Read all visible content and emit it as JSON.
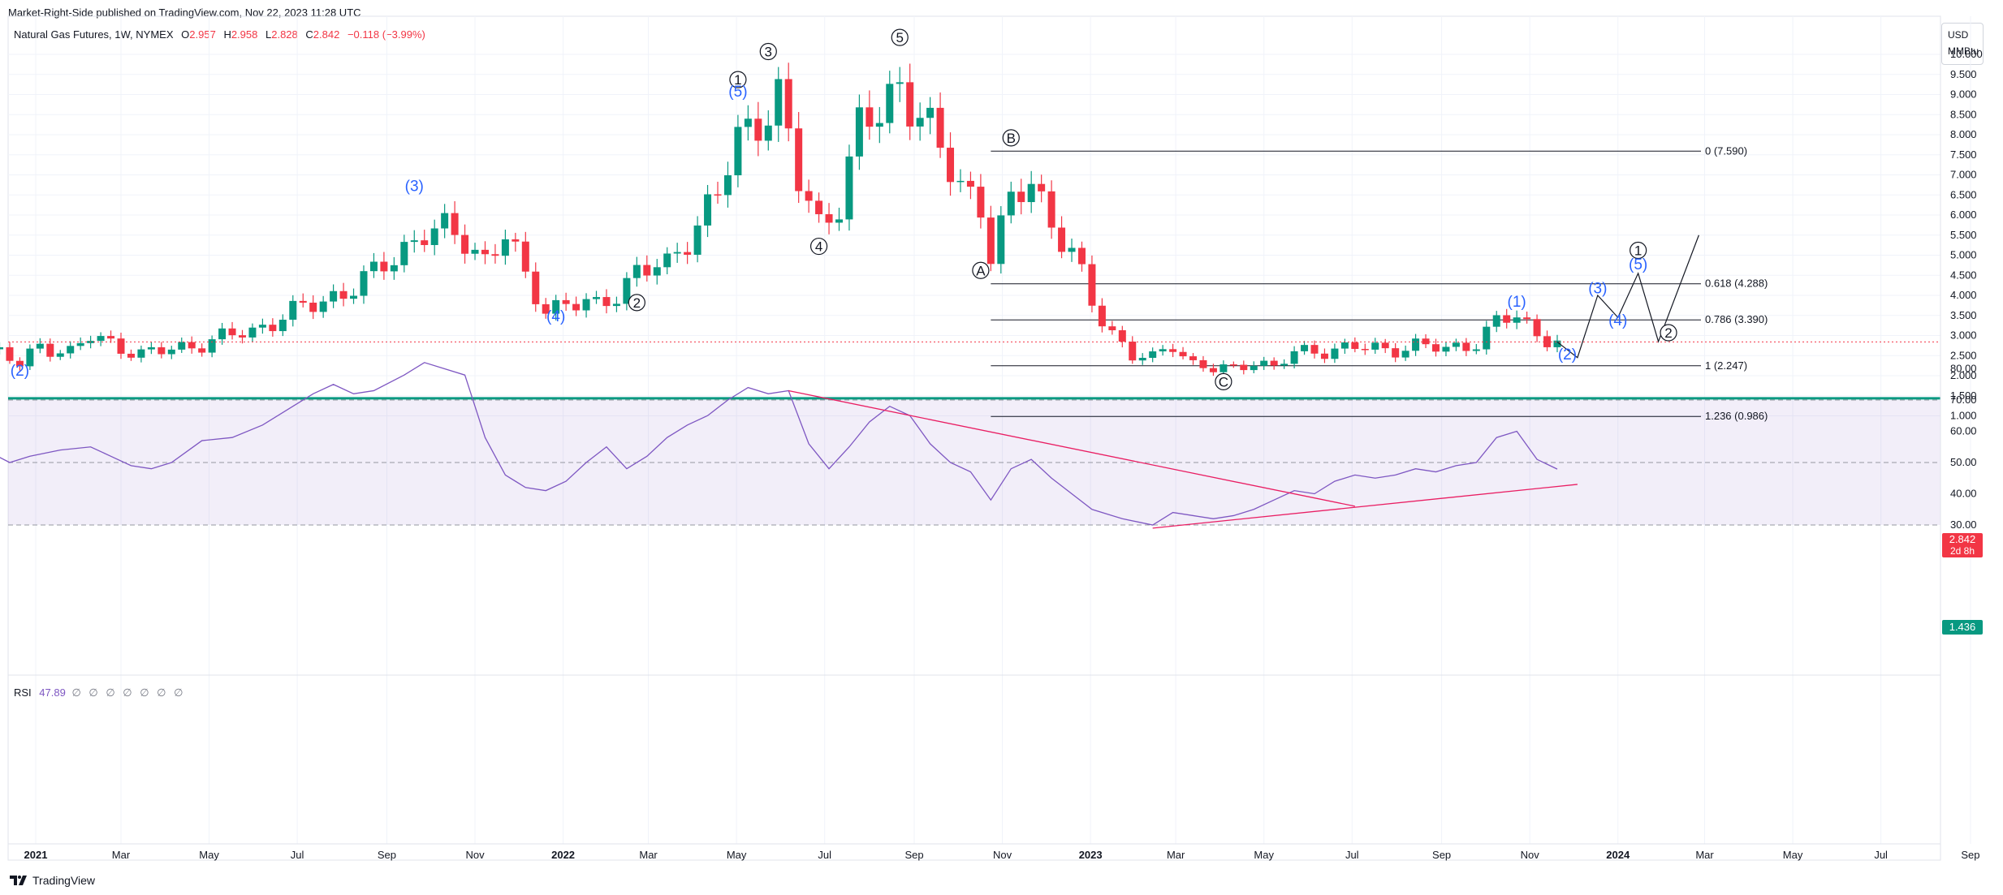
{
  "header": {
    "publisher": "Market-Right-Side published on TradingView.com, Nov 22, 2023 11:28 UTC"
  },
  "symbol": {
    "name": "Natural Gas Futures, 1W, NYMEX",
    "o_label": "O",
    "o": "2.957",
    "h_label": "H",
    "h": "2.958",
    "l_label": "L",
    "l": "2.828",
    "c_label": "C",
    "c": "2.842",
    "change": "−0.118 (−3.99%)"
  },
  "currency": {
    "line1": "USD",
    "line2": "MMBtu"
  },
  "price_tag": {
    "price": "2.842",
    "countdown": "2d 8h"
  },
  "level_tag": "1.436",
  "rsi": {
    "label": "RSI",
    "value": "47.89",
    "dots": "∅ ∅ ∅ ∅ ∅ ∅ ∅"
  },
  "footer": {
    "brand": "TradingView"
  },
  "colors": {
    "up": "#089981",
    "down": "#f23645",
    "rsi": "#7e57c2",
    "trend": "#e91e63",
    "wave": "#2962ff",
    "support": "#089981"
  },
  "chart_data": {
    "type": "candlestick",
    "title": "Natural Gas Futures, 1W, NYMEX",
    "y_ticks": [
      "1.000",
      "1.500",
      "2.000",
      "2.500",
      "3.000",
      "3.500",
      "4.000",
      "4.500",
      "5.000",
      "5.500",
      "6.000",
      "6.500",
      "7.000",
      "7.500",
      "8.000",
      "8.500",
      "9.000",
      "9.500",
      "10.000"
    ],
    "x_ticks": [
      {
        "label": "2021",
        "date": "2021-01-01",
        "bold": true
      },
      {
        "label": "Mar",
        "date": "2021-03-01",
        "bold": false
      },
      {
        "label": "May",
        "date": "2021-05-01",
        "bold": false
      },
      {
        "label": "Jul",
        "date": "2021-07-01",
        "bold": false
      },
      {
        "label": "Sep",
        "date": "2021-09-01",
        "bold": false
      },
      {
        "label": "Nov",
        "date": "2021-11-01",
        "bold": false
      },
      {
        "label": "2022",
        "date": "2022-01-01",
        "bold": true
      },
      {
        "label": "Mar",
        "date": "2022-03-01",
        "bold": false
      },
      {
        "label": "May",
        "date": "2022-05-01",
        "bold": false
      },
      {
        "label": "Jul",
        "date": "2022-07-01",
        "bold": false
      },
      {
        "label": "Sep",
        "date": "2022-09-01",
        "bold": false
      },
      {
        "label": "Nov",
        "date": "2022-11-01",
        "bold": false
      },
      {
        "label": "2023",
        "date": "2023-01-01",
        "bold": true
      },
      {
        "label": "Mar",
        "date": "2023-03-01",
        "bold": false
      },
      {
        "label": "May",
        "date": "2023-05-01",
        "bold": false
      },
      {
        "label": "Jul",
        "date": "2023-07-01",
        "bold": false
      },
      {
        "label": "Sep",
        "date": "2023-09-01",
        "bold": false
      },
      {
        "label": "Nov",
        "date": "2023-11-01",
        "bold": false
      },
      {
        "label": "2024",
        "date": "2024-01-01",
        "bold": true
      },
      {
        "label": "Mar",
        "date": "2024-03-01",
        "bold": false
      },
      {
        "label": "May",
        "date": "2024-05-01",
        "bold": false
      },
      {
        "label": "Jul",
        "date": "2024-07-01",
        "bold": false
      },
      {
        "label": "Sep",
        "date": "2024-09-01",
        "bold": false
      }
    ],
    "rsi_ticks": [
      "30.00",
      "40.00",
      "50.00",
      "60.00",
      "70.00",
      "80.00"
    ],
    "rsi_band": [
      30,
      70
    ],
    "rsi_midline": 50,
    "close_path": [
      [
        "2020-11-02",
        2.9
      ],
      [
        "2020-11-16",
        2.75
      ],
      [
        "2020-12-07",
        2.6
      ],
      [
        "2020-12-21",
        2.25
      ],
      [
        "2021-01-04",
        2.75
      ],
      [
        "2021-01-25",
        2.6
      ],
      [
        "2021-02-08",
        2.95
      ],
      [
        "2021-02-22",
        2.8
      ],
      [
        "2021-03-15",
        2.55
      ],
      [
        "2021-03-29",
        2.6
      ],
      [
        "2021-04-19",
        2.75
      ],
      [
        "2021-05-10",
        2.95
      ],
      [
        "2021-05-31",
        3.1
      ],
      [
        "2021-06-21",
        3.5
      ],
      [
        "2021-07-12",
        3.75
      ],
      [
        "2021-08-02",
        4.1
      ],
      [
        "2021-08-23",
        4.5
      ],
      [
        "2021-09-13",
        5.2
      ],
      [
        "2021-09-27",
        5.6
      ],
      [
        "2021-10-11",
        5.55
      ],
      [
        "2021-10-25",
        5.4
      ],
      [
        "2021-11-08",
        4.9
      ],
      [
        "2021-11-22",
        5.5
      ],
      [
        "2021-12-06",
        4.4
      ],
      [
        "2021-12-20",
        3.7
      ],
      [
        "2022-01-03",
        3.8
      ],
      [
        "2022-01-24",
        3.7
      ],
      [
        "2022-02-07",
        4.1
      ],
      [
        "2022-02-21",
        4.6
      ],
      [
        "2022-03-14",
        4.7
      ],
      [
        "2022-03-28",
        5.5
      ],
      [
        "2022-04-18",
        6.5
      ],
      [
        "2022-05-02",
        7.8
      ],
      [
        "2022-05-16",
        8.5
      ],
      [
        "2022-05-30",
        8.9
      ],
      [
        "2022-06-13",
        6.8
      ],
      [
        "2022-06-27",
        5.75
      ],
      [
        "2022-07-11",
        6.4
      ],
      [
        "2022-07-25",
        8.1
      ],
      [
        "2022-08-08",
        8.5
      ],
      [
        "2022-08-22",
        9.35
      ],
      [
        "2022-09-05",
        8.5
      ],
      [
        "2022-09-19",
        7.5
      ],
      [
        "2022-10-03",
        6.8
      ],
      [
        "2022-10-17",
        6.3
      ],
      [
        "2022-10-24",
        5.0
      ],
      [
        "2022-11-07",
        6.2
      ],
      [
        "2022-11-21",
        7.0
      ],
      [
        "2022-12-05",
        5.8
      ],
      [
        "2022-12-19",
        5.0
      ],
      [
        "2023-01-02",
        3.8
      ],
      [
        "2023-01-16",
        3.1
      ],
      [
        "2023-01-30",
        2.5
      ],
      [
        "2023-02-13",
        2.4
      ],
      [
        "2023-02-27",
        2.8
      ],
      [
        "2023-03-13",
        2.3
      ],
      [
        "2023-03-27",
        2.15
      ],
      [
        "2023-04-10",
        2.15
      ],
      [
        "2023-04-24",
        2.4
      ],
      [
        "2023-05-08",
        2.2
      ],
      [
        "2023-05-22",
        2.55
      ],
      [
        "2023-06-12",
        2.65
      ],
      [
        "2023-07-03",
        2.7
      ],
      [
        "2023-07-24",
        2.65
      ],
      [
        "2023-08-14",
        2.75
      ],
      [
        "2023-09-04",
        2.65
      ],
      [
        "2023-09-25",
        2.85
      ],
      [
        "2023-10-09",
        3.3
      ],
      [
        "2023-10-23",
        3.5
      ],
      [
        "2023-11-06",
        3.05
      ],
      [
        "2023-11-20",
        2.84
      ]
    ],
    "projection": [
      [
        "2023-11-20",
        2.84
      ],
      [
        "2023-12-04",
        2.45
      ],
      [
        "2023-12-18",
        4.0
      ],
      [
        "2024-01-01",
        3.45
      ],
      [
        "2024-01-15",
        4.55
      ],
      [
        "2024-01-29",
        2.85
      ],
      [
        "2024-02-26",
        5.5
      ]
    ],
    "fib_levels": [
      {
        "label": "0 (7.590)",
        "price": 7.59
      },
      {
        "label": "0.618 (4.288)",
        "price": 4.288
      },
      {
        "label": "0.786 (3.390)",
        "price": 3.39
      },
      {
        "label": "1 (2.247)",
        "price": 2.247
      },
      {
        "label": "1.236 (0.986)",
        "price": 0.986
      }
    ],
    "fib_start": "2022-10-24",
    "support_level": 1.436,
    "last_price": 2.842,
    "wave_labels": [
      {
        "text": "(2)",
        "date": "2020-12-21",
        "price": 2.0,
        "style": "paren"
      },
      {
        "text": "(3)",
        "date": "2021-09-20",
        "price": 6.6,
        "style": "paren"
      },
      {
        "text": "(4)",
        "date": "2021-12-27",
        "price": 3.35,
        "style": "paren"
      },
      {
        "text": "2",
        "date": "2022-02-21",
        "price": 3.7,
        "style": "circle"
      },
      {
        "text": "1",
        "date": "2022-05-02",
        "price": 9.25,
        "style": "circle"
      },
      {
        "text": "(5)",
        "date": "2022-05-02",
        "price": 8.95,
        "style": "paren"
      },
      {
        "text": "3",
        "date": "2022-05-23",
        "price": 9.95,
        "style": "circle"
      },
      {
        "text": "4",
        "date": "2022-06-27",
        "price": 5.1,
        "style": "circle"
      },
      {
        "text": "5",
        "date": "2022-08-22",
        "price": 10.3,
        "style": "circle"
      },
      {
        "text": "B",
        "date": "2022-11-07",
        "price": 7.8,
        "style": "circle"
      },
      {
        "text": "A",
        "date": "2022-10-17",
        "price": 4.5,
        "style": "circle"
      },
      {
        "text": "C",
        "date": "2023-04-03",
        "price": 1.73,
        "style": "circle"
      },
      {
        "text": "(1)",
        "date": "2023-10-23",
        "price": 3.72,
        "style": "paren"
      },
      {
        "text": "(2)",
        "date": "2023-11-27",
        "price": 2.4,
        "style": "paren"
      },
      {
        "text": "(3)",
        "date": "2023-12-18",
        "price": 4.05,
        "style": "paren"
      },
      {
        "text": "(4)",
        "date": "2024-01-01",
        "price": 3.25,
        "style": "paren"
      },
      {
        "text": "1",
        "date": "2024-01-15",
        "price": 5.0,
        "style": "circle"
      },
      {
        "text": "(5)",
        "date": "2024-01-15",
        "price": 4.65,
        "style": "paren"
      },
      {
        "text": "2",
        "date": "2024-02-05",
        "price": 2.95,
        "style": "circle"
      }
    ],
    "rsi_values": [
      [
        "2020-11-02",
        52
      ],
      [
        "2020-11-23",
        55
      ],
      [
        "2020-12-14",
        50
      ],
      [
        "2020-12-28",
        52
      ],
      [
        "2021-01-18",
        54
      ],
      [
        "2021-02-08",
        55
      ],
      [
        "2021-02-22",
        52
      ],
      [
        "2021-03-08",
        49
      ],
      [
        "2021-03-22",
        48
      ],
      [
        "2021-04-05",
        50
      ],
      [
        "2021-04-26",
        57
      ],
      [
        "2021-05-17",
        58
      ],
      [
        "2021-06-07",
        62
      ],
      [
        "2021-06-28",
        68
      ],
      [
        "2021-07-12",
        72
      ],
      [
        "2021-07-26",
        75
      ],
      [
        "2021-08-09",
        72
      ],
      [
        "2021-08-23",
        73
      ],
      [
        "2021-09-13",
        78
      ],
      [
        "2021-09-27",
        82
      ],
      [
        "2021-10-11",
        80
      ],
      [
        "2021-10-25",
        78
      ],
      [
        "2021-11-08",
        58
      ],
      [
        "2021-11-22",
        46
      ],
      [
        "2021-12-06",
        42
      ],
      [
        "2021-12-20",
        41
      ],
      [
        "2022-01-03",
        44
      ],
      [
        "2022-01-17",
        50
      ],
      [
        "2022-01-31",
        55
      ],
      [
        "2022-02-14",
        48
      ],
      [
        "2022-02-28",
        52
      ],
      [
        "2022-03-14",
        58
      ],
      [
        "2022-03-28",
        62
      ],
      [
        "2022-04-11",
        65
      ],
      [
        "2022-04-25",
        70
      ],
      [
        "2022-05-09",
        74
      ],
      [
        "2022-05-23",
        72
      ],
      [
        "2022-06-06",
        73
      ],
      [
        "2022-06-20",
        56
      ],
      [
        "2022-07-04",
        48
      ],
      [
        "2022-07-18",
        55
      ],
      [
        "2022-08-01",
        63
      ],
      [
        "2022-08-15",
        68
      ],
      [
        "2022-08-29",
        65
      ],
      [
        "2022-09-12",
        56
      ],
      [
        "2022-09-26",
        50
      ],
      [
        "2022-10-10",
        47
      ],
      [
        "2022-10-24",
        38
      ],
      [
        "2022-11-07",
        48
      ],
      [
        "2022-11-21",
        51
      ],
      [
        "2022-12-05",
        45
      ],
      [
        "2022-12-19",
        40
      ],
      [
        "2023-01-02",
        35
      ],
      [
        "2023-01-23",
        32
      ],
      [
        "2023-02-13",
        30
      ],
      [
        "2023-02-27",
        34
      ],
      [
        "2023-03-13",
        33
      ],
      [
        "2023-03-27",
        32
      ],
      [
        "2023-04-10",
        33
      ],
      [
        "2023-04-24",
        35
      ],
      [
        "2023-05-08",
        38
      ],
      [
        "2023-05-22",
        41
      ],
      [
        "2023-06-05",
        40
      ],
      [
        "2023-06-19",
        44
      ],
      [
        "2023-07-03",
        46
      ],
      [
        "2023-07-17",
        45
      ],
      [
        "2023-07-31",
        46
      ],
      [
        "2023-08-14",
        48
      ],
      [
        "2023-08-28",
        47
      ],
      [
        "2023-09-11",
        49
      ],
      [
        "2023-09-25",
        50
      ],
      [
        "2023-10-09",
        58
      ],
      [
        "2023-10-23",
        60
      ],
      [
        "2023-11-06",
        51
      ],
      [
        "2023-11-20",
        47.89
      ]
    ],
    "rsi_trendlines": [
      {
        "from": [
          "2022-06-06",
          73
        ],
        "to": [
          "2023-07-03",
          36
        ]
      },
      {
        "from": [
          "2023-02-13",
          29
        ],
        "to": [
          "2023-12-04",
          43
        ]
      }
    ]
  }
}
